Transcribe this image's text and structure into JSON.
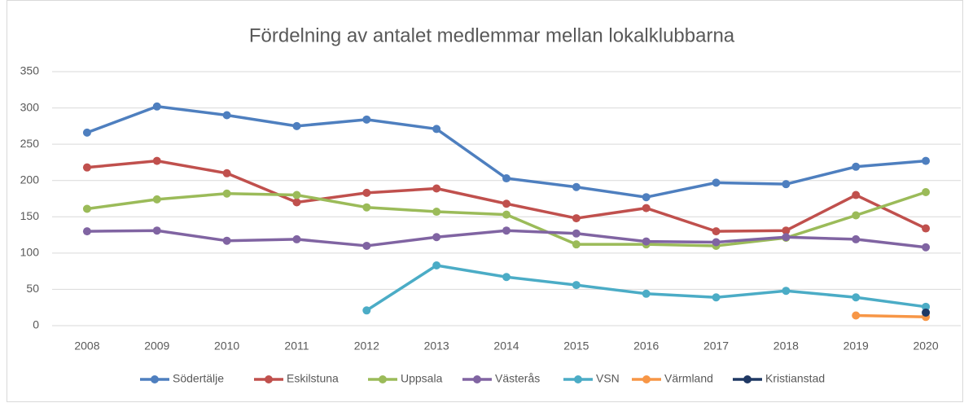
{
  "chart_data": {
    "type": "line",
    "title": "Fördelning av antalet medlemmar mellan lokalklubbarna",
    "categories": [
      "2008",
      "2009",
      "2010",
      "2011",
      "2012",
      "2013",
      "2014",
      "2015",
      "2016",
      "2017",
      "2018",
      "2019",
      "2020"
    ],
    "series": [
      {
        "name": "Södertälje",
        "color": "#4e7fbf",
        "values": [
          266,
          302,
          290,
          275,
          284,
          271,
          203,
          191,
          177,
          197,
          195,
          219,
          227
        ]
      },
      {
        "name": "Eskilstuna",
        "color": "#c0504d",
        "values": [
          218,
          227,
          210,
          170,
          183,
          189,
          168,
          148,
          162,
          130,
          131,
          180,
          134
        ]
      },
      {
        "name": "Uppsala",
        "color": "#9bbb59",
        "values": [
          161,
          174,
          182,
          180,
          163,
          157,
          153,
          112,
          112,
          110,
          121,
          152,
          184
        ]
      },
      {
        "name": "Västerås",
        "color": "#8064a2",
        "values": [
          130,
          131,
          117,
          119,
          110,
          122,
          131,
          127,
          116,
          115,
          122,
          119,
          108
        ]
      },
      {
        "name": "VSN",
        "color": "#4bacc6",
        "values": [
          null,
          null,
          null,
          null,
          21,
          83,
          67,
          56,
          44,
          39,
          48,
          39,
          26
        ]
      },
      {
        "name": "Värmland",
        "color": "#f79646",
        "values": [
          null,
          null,
          null,
          null,
          null,
          null,
          null,
          null,
          null,
          null,
          null,
          14,
          12
        ]
      },
      {
        "name": "Kristianstad",
        "color": "#1f3864",
        "values": [
          null,
          null,
          null,
          null,
          null,
          null,
          null,
          null,
          null,
          null,
          null,
          null,
          18
        ]
      }
    ],
    "ylim": [
      0,
      350
    ],
    "yticks": [
      0,
      50,
      100,
      150,
      200,
      250,
      300,
      350
    ],
    "grid": true,
    "legend": "bottom"
  }
}
